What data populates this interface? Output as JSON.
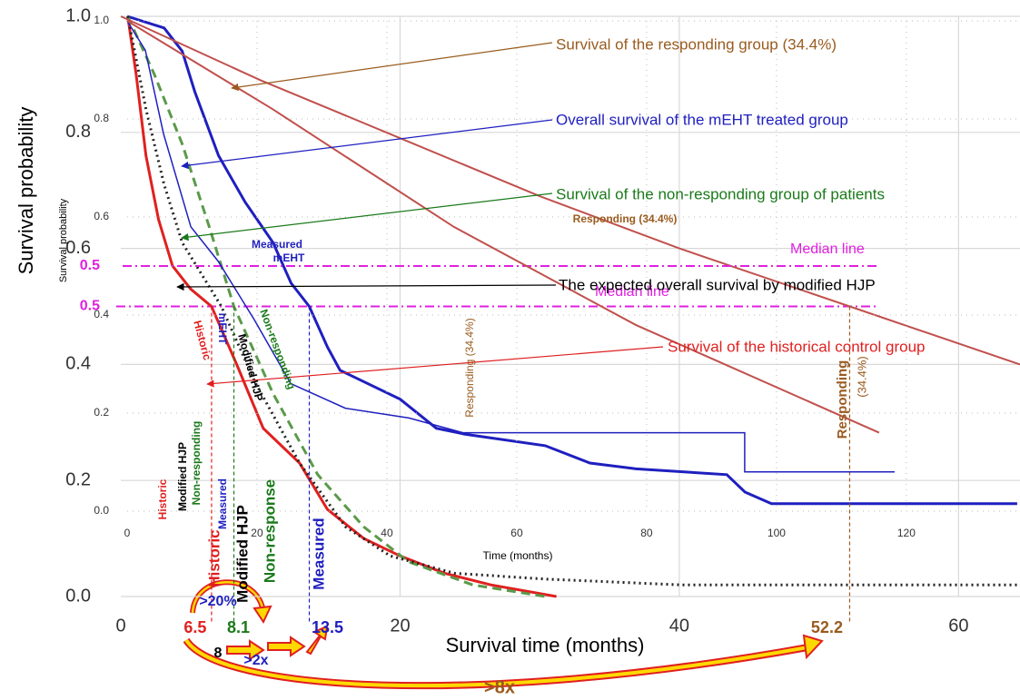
{
  "chart_data": [
    {
      "type": "line",
      "xlabel": "Survival time (months)",
      "ylabel": "Survival probability",
      "xlim": [
        0,
        64.4
      ],
      "ylim": [
        0,
        1.0
      ],
      "xticks": [
        0,
        20,
        40,
        60
      ],
      "yticks": [
        {
          "value": 0,
          "label": "0.0"
        },
        0.2,
        0.4,
        0.6,
        0.8,
        {
          "value": 1,
          "label": "1.0"
        }
      ],
      "grid": true,
      "median_line": 0.5,
      "median_label": "Median line",
      "median_color": "#e020e0",
      "medians": [
        6.5,
        8.1,
        13.5,
        52.2
      ],
      "median_colors": [
        "#e02020",
        "#1a7a1a",
        "#1f1fbf",
        "#9a5b1e"
      ],
      "series": [
        {
          "color": "#1f1fbf",
          "width": 3,
          "style": "solid",
          "x": [
            0.46,
            3.1,
            4.4,
            5.3,
            7.0,
            8.9,
            10.9,
            12.2,
            13.5,
            14.8,
            15.7,
            20.0,
            22.6,
            24.6,
            30.4,
            33.6,
            36.9,
            43.4,
            44.7,
            46.6,
            64.2
          ],
          "values": [
            1.0,
            0.98,
            0.94,
            0.87,
            0.76,
            0.68,
            0.61,
            0.54,
            0.5,
            0.43,
            0.39,
            0.34,
            0.29,
            0.28,
            0.26,
            0.23,
            0.22,
            0.21,
            0.18,
            0.16,
            0.16
          ]
        },
        {
          "color": "#e02020",
          "width": 3,
          "style": "solid",
          "x": [
            0.5,
            1.1,
            1.8,
            2.7,
            3.7,
            5.0,
            6.5,
            8.3,
            10.2,
            12.8,
            14.8,
            17.4,
            20.0,
            23.2,
            26.5,
            31.2
          ],
          "values": [
            1.0,
            0.9,
            0.76,
            0.65,
            0.57,
            0.53,
            0.5,
            0.4,
            0.29,
            0.23,
            0.15,
            0.1,
            0.07,
            0.04,
            0.02,
            0
          ]
        },
        {
          "color": "#5a9a4a",
          "width": 3,
          "style": "dashed",
          "x": [
            0.5,
            2.4,
            4.4,
            6.3,
            8.1,
            10.9,
            14.1,
            17.4,
            20.6,
            25.2,
            30.4
          ],
          "values": [
            1.0,
            0.9,
            0.78,
            0.64,
            0.5,
            0.35,
            0.21,
            0.12,
            0.06,
            0.02,
            0
          ]
        },
        {
          "color": "#222222",
          "width": 3,
          "style": "dotted",
          "x": [
            0.5,
            1.8,
            3.1,
            4.4,
            7.2,
            9.6,
            12.8,
            16.1,
            19.3,
            23.9,
            30.4,
            40.1,
            64.4
          ],
          "values": [
            1.0,
            0.84,
            0.71,
            0.61,
            0.5,
            0.37,
            0.23,
            0.12,
            0.07,
            0.04,
            0.03,
            0.02,
            0.02
          ]
        },
        {
          "color": "#c0504d",
          "width": 2,
          "style": "solid",
          "x": [
            0,
            10,
            20,
            30,
            40,
            52.2,
            64.4
          ],
          "values": [
            1.0,
            0.89,
            0.79,
            0.69,
            0.6,
            0.5,
            0.4
          ]
        }
      ]
    },
    {
      "type": "line",
      "xlabel": "Time (months)",
      "ylabel": "Survival probability",
      "xlim": [
        0,
        137.5
      ],
      "ylim": [
        0,
        1.0
      ],
      "xticks": [
        0,
        20,
        40,
        60,
        80,
        100,
        120
      ],
      "yticks": [
        {
          "value": 0,
          "label": "0.0"
        },
        0.2,
        0.4,
        0.6,
        0.8,
        {
          "value": 1,
          "label": "1.0"
        }
      ],
      "grid": true,
      "median_line": 0.5,
      "median_label": "Median line",
      "median_color": "#e020e0",
      "series": [
        {
          "color": "#1f1fbf",
          "width": 1.5,
          "style": "solid",
          "x": [
            0,
            2.8,
            5.6,
            9.8,
            14.0,
            19.6,
            25.2,
            33.6,
            43.4,
            51.7,
            64.3,
            83.9,
            95.1,
            95.1,
            118.2
          ],
          "values": [
            1.0,
            0.94,
            0.77,
            0.58,
            0.51,
            0.39,
            0.26,
            0.21,
            0.19,
            0.16,
            0.16,
            0.16,
            0.16,
            0.08,
            0.08
          ]
        },
        {
          "color": "#c0504d",
          "width": 2,
          "style": "solid",
          "x": [
            0,
            22.4,
            50.3,
            78.3,
            115.8
          ],
          "values": [
            1.0,
            0.82,
            0.58,
            0.38,
            0.16
          ]
        }
      ]
    }
  ],
  "annotations": [
    {
      "text": "Survival of the responding group (34.4%)",
      "color": "#9a5b1e"
    },
    {
      "text": "Overall survival of the mEHT treated group",
      "color": "#1f1fbf"
    },
    {
      "text": "Survival of the non-responding group of patients",
      "color": "#1a7a1a"
    },
    {
      "text": "The expected overall survival by modified HJP",
      "color": "#000000"
    },
    {
      "text": "Survival of the historical control group",
      "color": "#e02020"
    },
    {
      "text": "Responding (34.4%)",
      "color": "#9a5b1e"
    },
    {
      "text": "Measured",
      "color": "#1f1fbf"
    },
    {
      "text": "mEHT",
      "color": "#1f1fbf"
    },
    {
      "text": "Historic",
      "color": "#e02020"
    },
    {
      "text": "Modified HJP",
      "color": "#000000"
    },
    {
      "text": "Non-responding",
      "color": "#1a7a1a"
    },
    {
      "text": "Measured",
      "color": "#1f1fbf"
    },
    {
      "text": "Historic",
      "color": "#e02020"
    },
    {
      "text": "mEHT",
      "color": "#1f1fbf"
    },
    {
      "text": "Modified HJP",
      "color": "#000000"
    },
    {
      "text": "Non-responding",
      "color": "#1a7a1a"
    },
    {
      "text": "Responding (34.4%)",
      "color": "#9a5b1e"
    },
    {
      "text": "Responding",
      "color": "#9a5b1e"
    },
    {
      "text": "(34.4%)",
      "color": "#9a5b1e"
    },
    {
      "text": "Historic",
      "color": "#e02020"
    },
    {
      "text": "Modified HJP",
      "color": "#000000"
    },
    {
      "text": "Non-response",
      "color": "#1a7a1a"
    },
    {
      "text": "Measured",
      "color": "#1f1fbf"
    },
    {
      "text": ">20%",
      "color": "#1f1fbf"
    },
    {
      "text": "8",
      "color": "#000000"
    },
    {
      "text": ">2x",
      "color": "#1f1fbf"
    },
    {
      "text": ">8x",
      "color": "#9a5b1e"
    }
  ]
}
